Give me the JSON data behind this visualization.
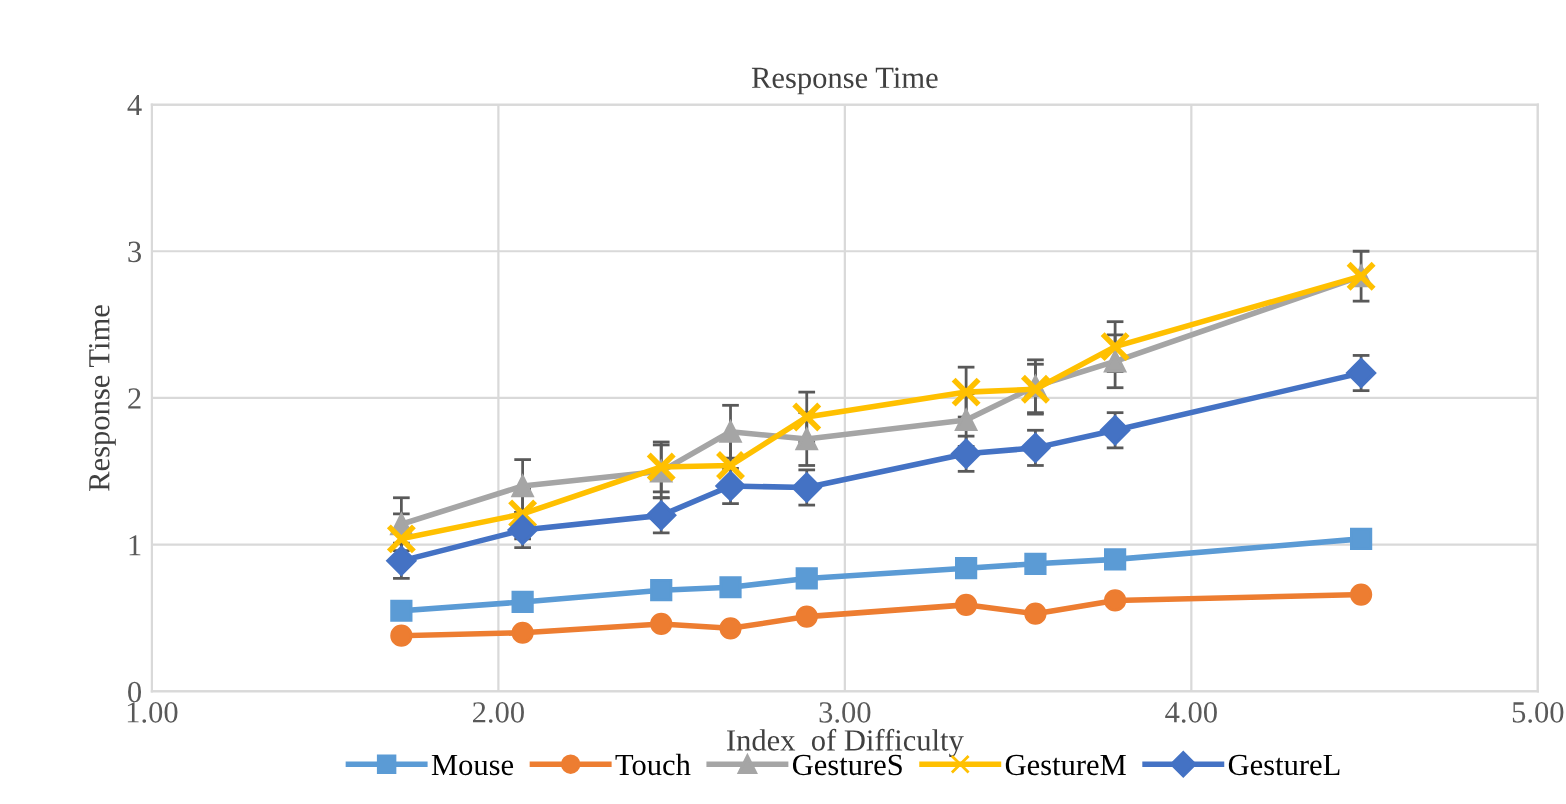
{
  "chart_data": {
    "type": "line",
    "title": "Response Time",
    "xlabel": "Index  of Difficulty",
    "ylabel": "Response Time",
    "x": [
      1.72,
      2.07,
      2.47,
      2.67,
      2.89,
      3.35,
      3.55,
      3.78,
      4.49
    ],
    "series": [
      {
        "name": "Mouse",
        "color": "#5b9bd5",
        "marker": "square",
        "values": [
          0.55,
          0.61,
          0.69,
          0.71,
          0.77,
          0.84,
          0.87,
          0.9,
          1.04
        ]
      },
      {
        "name": "Touch",
        "color": "#ed7d31",
        "marker": "circle",
        "values": [
          0.38,
          0.4,
          0.46,
          0.43,
          0.51,
          0.59,
          0.53,
          0.62,
          0.66
        ]
      },
      {
        "name": "GestureS",
        "color": "#a5a5a5",
        "marker": "triangle",
        "values": [
          1.14,
          1.4,
          1.5,
          1.77,
          1.72,
          1.85,
          2.08,
          2.25,
          2.83
        ],
        "errors": [
          0.18,
          0.18,
          0.18,
          0.18,
          0.18,
          0.18,
          0.18,
          0.18,
          0.17
        ]
      },
      {
        "name": "GestureM",
        "color": "#ffc000",
        "marker": "cross",
        "values": [
          1.04,
          1.21,
          1.53,
          1.54,
          1.87,
          2.04,
          2.06,
          2.35,
          2.83
        ],
        "errors": [
          0.17,
          0.17,
          0.17,
          0.17,
          0.17,
          0.17,
          0.17,
          0.17,
          0.17
        ]
      },
      {
        "name": "GestureL",
        "color": "#4472c4",
        "marker": "diamond",
        "values": [
          0.89,
          1.1,
          1.2,
          1.4,
          1.39,
          1.62,
          1.66,
          1.78,
          2.17
        ],
        "errors": [
          0.12,
          0.12,
          0.12,
          0.12,
          0.12,
          0.12,
          0.12,
          0.12,
          0.12
        ]
      }
    ],
    "xlim": [
      1.0,
      5.0
    ],
    "xticks": [
      {
        "value": 1,
        "label": "1.00"
      },
      {
        "value": 2,
        "label": "2.00"
      },
      {
        "value": 3,
        "label": "3.00"
      },
      {
        "value": 4,
        "label": "4.00"
      },
      {
        "value": 5,
        "label": "5.00"
      }
    ],
    "ylim": [
      0,
      4
    ],
    "yticks": [
      0,
      1,
      2,
      3,
      4
    ],
    "grid": true,
    "legend": "bottom"
  }
}
